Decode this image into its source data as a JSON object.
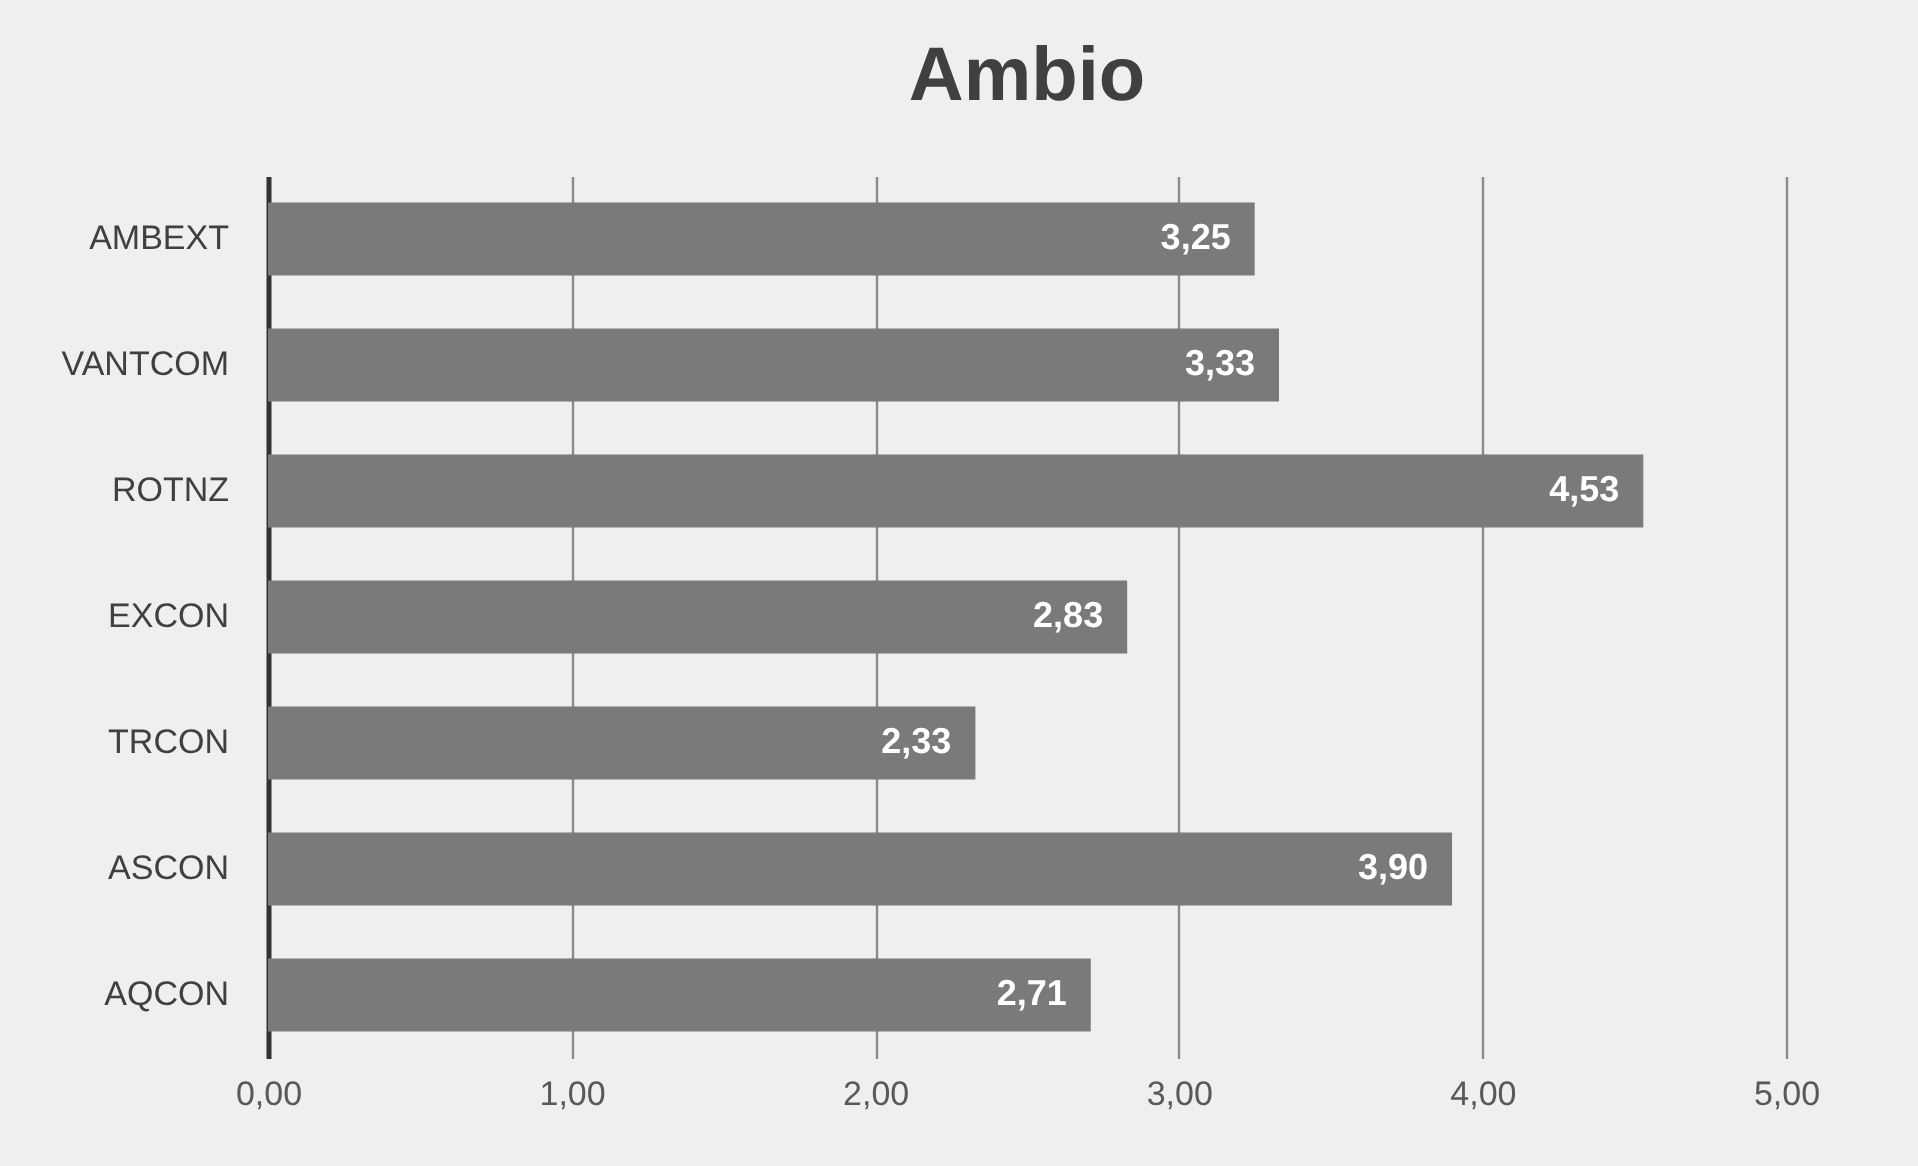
{
  "chart_data": {
    "type": "bar",
    "title": "Ambio",
    "orientation": "horizontal",
    "categories": [
      "AMBEXT",
      "VANTCOM",
      "ROTNZ",
      "EXCON",
      "TRCON",
      "ASCON",
      "AQCON"
    ],
    "values": [
      3.25,
      3.33,
      4.53,
      2.83,
      2.33,
      3.9,
      2.71
    ],
    "value_labels": [
      "3,25",
      "3,33",
      "4,53",
      "2,83",
      "2,33",
      "3,90",
      "2,71"
    ],
    "color": "#7a7a7a",
    "xlim": [
      0,
      5
    ],
    "xticks": [
      {
        "value": 0,
        "label": "0,00"
      },
      {
        "value": 1,
        "label": "1,00"
      },
      {
        "value": 2,
        "label": "2,00"
      },
      {
        "value": 3,
        "label": "3,00"
      },
      {
        "value": 4,
        "label": "4,00"
      },
      {
        "value": 5,
        "label": "5,00"
      }
    ],
    "grid": "x"
  }
}
